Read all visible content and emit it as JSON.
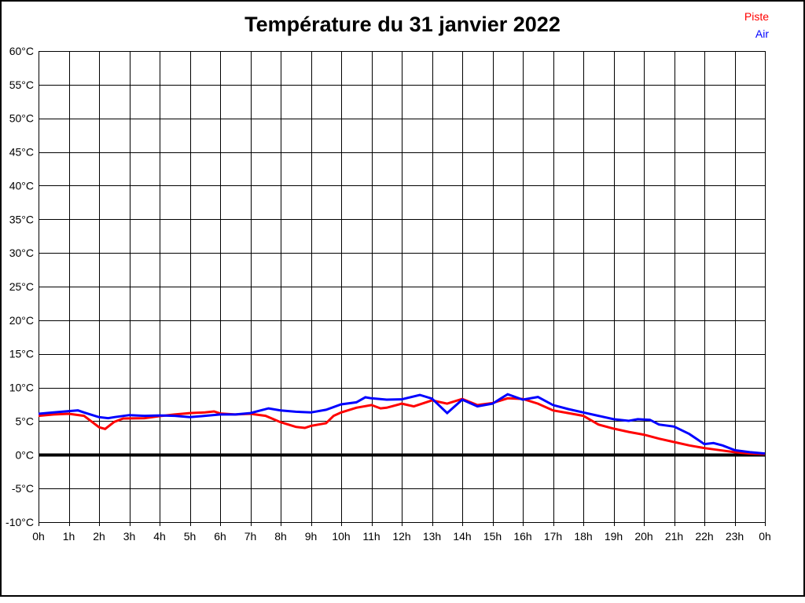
{
  "page": {
    "title": "Température du 31 janvier 2022"
  },
  "legend": [
    {
      "label": "Piste",
      "color": "#ff0000"
    },
    {
      "label": "Air",
      "color": "#0000ff"
    }
  ],
  "chart_data": {
    "type": "line",
    "title": "Température du 31 janvier 2022",
    "xlabel": "",
    "ylabel": "",
    "x_unit": "hour of day",
    "y_unit": "°C",
    "xlim": [
      0,
      24
    ],
    "ylim": [
      -10,
      60
    ],
    "y_step": 5,
    "x_step": 1,
    "grid": true,
    "zero_line": true,
    "legend_position": "top-right",
    "x_tick_labels": [
      "0h",
      "1h",
      "2h",
      "3h",
      "4h",
      "5h",
      "6h",
      "7h",
      "8h",
      "9h",
      "10h",
      "11h",
      "12h",
      "13h",
      "14h",
      "15h",
      "16h",
      "17h",
      "18h",
      "19h",
      "20h",
      "21h",
      "22h",
      "23h",
      "0h"
    ],
    "y_tick_labels": [
      "60°C",
      "55°C",
      "50°C",
      "45°C",
      "40°C",
      "35°C",
      "30°C",
      "25°C",
      "20°C",
      "15°C",
      "10°C",
      "5°C",
      "0°C",
      "-5°C",
      "-10°C"
    ],
    "series": [
      {
        "name": "Piste",
        "color": "#ff0000",
        "points": [
          [
            0,
            5.8
          ],
          [
            0.5,
            6.0
          ],
          [
            1,
            6.1
          ],
          [
            1.5,
            5.8
          ],
          [
            2,
            4.1
          ],
          [
            2.2,
            3.85
          ],
          [
            2.5,
            4.9
          ],
          [
            2.8,
            5.4
          ],
          [
            3.5,
            5.45
          ],
          [
            4,
            5.75
          ],
          [
            4.5,
            6.0
          ],
          [
            5,
            6.2
          ],
          [
            5.5,
            6.3
          ],
          [
            5.8,
            6.45
          ],
          [
            6,
            6.15
          ],
          [
            6.5,
            6.0
          ],
          [
            7,
            6.1
          ],
          [
            7.5,
            5.8
          ],
          [
            8,
            4.85
          ],
          [
            8.5,
            4.15
          ],
          [
            8.8,
            4.0
          ],
          [
            9,
            4.3
          ],
          [
            9.5,
            4.7
          ],
          [
            9.75,
            5.8
          ],
          [
            10,
            6.3
          ],
          [
            10.5,
            7.0
          ],
          [
            11,
            7.4
          ],
          [
            11.3,
            6.9
          ],
          [
            11.5,
            7.0
          ],
          [
            12,
            7.6
          ],
          [
            12.4,
            7.2
          ],
          [
            13,
            8.1
          ],
          [
            13.5,
            7.6
          ],
          [
            14,
            8.3
          ],
          [
            14.5,
            7.4
          ],
          [
            15,
            7.7
          ],
          [
            15.5,
            8.4
          ],
          [
            16,
            8.3
          ],
          [
            16.5,
            7.6
          ],
          [
            17,
            6.6
          ],
          [
            17.5,
            6.2
          ],
          [
            18,
            5.8
          ],
          [
            18.5,
            4.5
          ],
          [
            19,
            3.9
          ],
          [
            19.5,
            3.4
          ],
          [
            20,
            3.0
          ],
          [
            20.5,
            2.4
          ],
          [
            21,
            1.9
          ],
          [
            21.5,
            1.4
          ],
          [
            22,
            1.0
          ],
          [
            22.5,
            0.7
          ],
          [
            23,
            0.4
          ],
          [
            23.5,
            0.2
          ],
          [
            24,
            0.1
          ]
        ]
      },
      {
        "name": "Air",
        "color": "#0000ff",
        "points": [
          [
            0,
            6.1
          ],
          [
            0.5,
            6.3
          ],
          [
            1,
            6.5
          ],
          [
            1.3,
            6.6
          ],
          [
            1.5,
            6.3
          ],
          [
            2,
            5.6
          ],
          [
            2.3,
            5.45
          ],
          [
            2.5,
            5.6
          ],
          [
            3,
            5.9
          ],
          [
            3.5,
            5.8
          ],
          [
            4,
            5.85
          ],
          [
            4.5,
            5.8
          ],
          [
            5,
            5.6
          ],
          [
            5.5,
            5.8
          ],
          [
            6,
            6.0
          ],
          [
            6.5,
            6.0
          ],
          [
            7,
            6.2
          ],
          [
            7.6,
            6.9
          ],
          [
            8,
            6.6
          ],
          [
            8.5,
            6.4
          ],
          [
            9,
            6.3
          ],
          [
            9.5,
            6.7
          ],
          [
            10,
            7.5
          ],
          [
            10.5,
            7.8
          ],
          [
            10.8,
            8.55
          ],
          [
            11,
            8.4
          ],
          [
            11.5,
            8.2
          ],
          [
            12,
            8.25
          ],
          [
            12.6,
            8.9
          ],
          [
            13,
            8.35
          ],
          [
            13.5,
            6.2
          ],
          [
            14,
            8.2
          ],
          [
            14.5,
            7.2
          ],
          [
            15,
            7.6
          ],
          [
            15.5,
            9.0
          ],
          [
            16,
            8.2
          ],
          [
            16.5,
            8.6
          ],
          [
            17,
            7.4
          ],
          [
            17.5,
            6.8
          ],
          [
            18,
            6.3
          ],
          [
            18.5,
            5.8
          ],
          [
            19,
            5.3
          ],
          [
            19.5,
            5.05
          ],
          [
            19.8,
            5.3
          ],
          [
            20.2,
            5.2
          ],
          [
            20.5,
            4.5
          ],
          [
            21,
            4.2
          ],
          [
            21.5,
            3.1
          ],
          [
            22,
            1.6
          ],
          [
            22.3,
            1.75
          ],
          [
            22.6,
            1.4
          ],
          [
            23,
            0.7
          ],
          [
            23.5,
            0.4
          ],
          [
            24,
            0.2
          ]
        ]
      }
    ]
  }
}
